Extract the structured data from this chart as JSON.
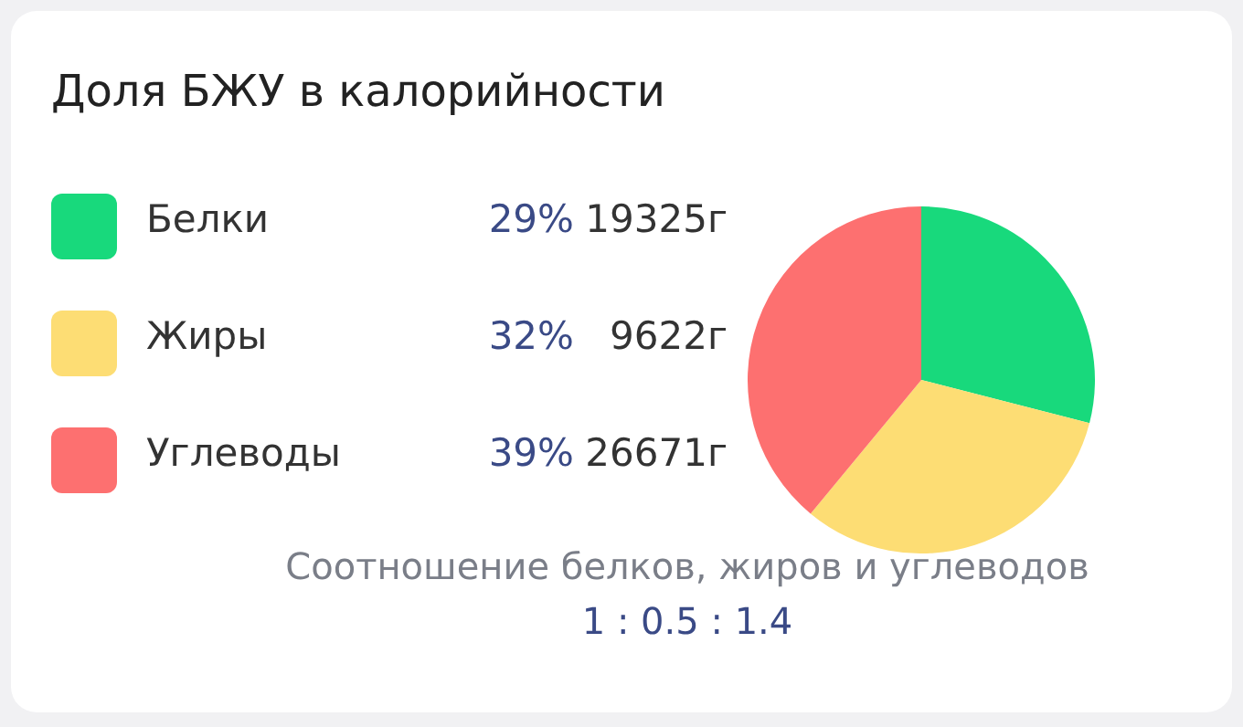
{
  "chart_data": {
    "type": "pie",
    "title": "Доля БЖУ в калорийности",
    "categories": [
      "Белки",
      "Жиры",
      "Углеводы"
    ],
    "values": [
      29,
      32,
      39
    ],
    "value_labels": [
      "29%",
      "32%",
      "39%"
    ],
    "colors": [
      "#18d97c",
      "#fddd74",
      "#fd7070"
    ],
    "legend": "left",
    "annotations": [
      {
        "text": "19325г",
        "x": "Белки"
      },
      {
        "text": "9622г",
        "x": "Жиры"
      },
      {
        "text": "26671г",
        "x": "Углеводы"
      },
      "Соотношение белков, жиров и углеводов",
      "1 : 0.5 : 1.4"
    ]
  }
}
